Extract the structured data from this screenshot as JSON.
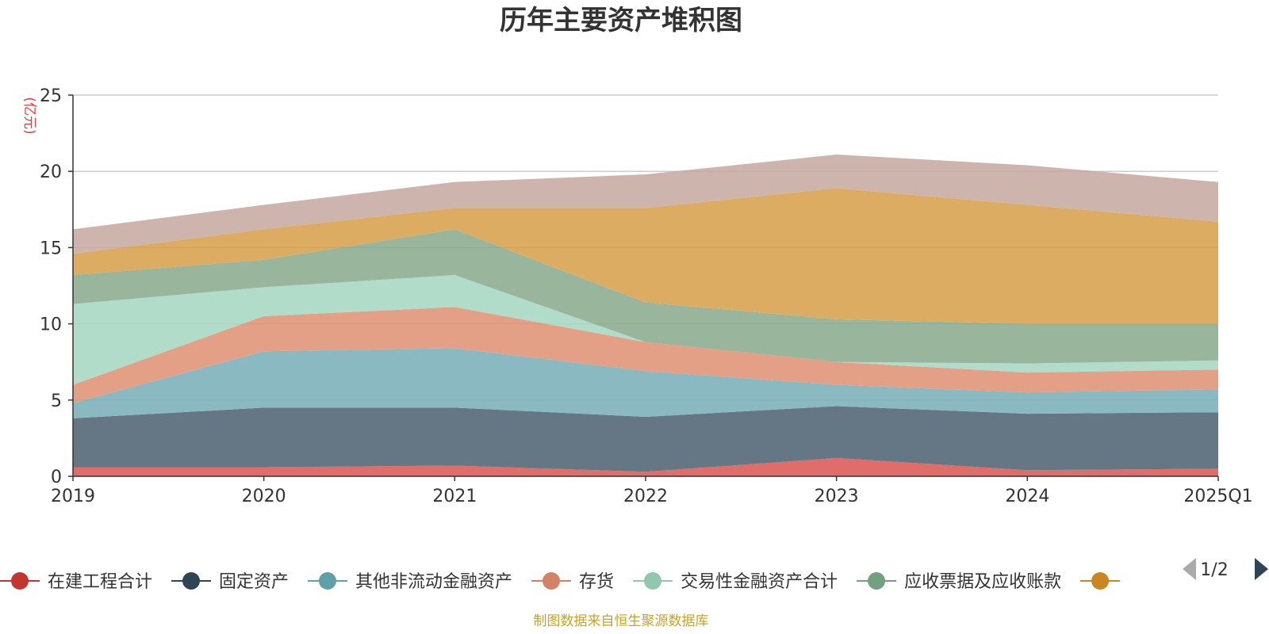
{
  "chart_data": {
    "type": "area",
    "stacked": true,
    "title": "历年主要资产堆积图",
    "unit_label": "(亿元)",
    "x": [
      "2019",
      "2020",
      "2021",
      "2022",
      "2023",
      "2024",
      "2025Q1"
    ],
    "ylim": [
      0,
      25
    ],
    "yticks": [
      0,
      5,
      10,
      15,
      20,
      25
    ],
    "grid": true,
    "legend_position": "bottom",
    "series": [
      {
        "name": "在建工程合计",
        "color": "#d9534f",
        "legend_color": "#c23531",
        "values": [
          0.6,
          0.6,
          0.7,
          0.3,
          1.2,
          0.4,
          0.5
        ]
      },
      {
        "name": "固定资产",
        "color": "#4a5e6e",
        "legend_color": "#2f4554",
        "values": [
          3.2,
          3.9,
          3.8,
          3.6,
          3.4,
          3.7,
          3.7
        ]
      },
      {
        "name": "其他非流动金融资产",
        "color": "#77adb7",
        "legend_color": "#61a0a8",
        "values": [
          1.0,
          3.7,
          3.9,
          3.0,
          1.4,
          1.4,
          1.5
        ]
      },
      {
        "name": "存货",
        "color": "#de8f72",
        "legend_color": "#d48265",
        "values": [
          1.2,
          2.3,
          2.7,
          1.9,
          1.5,
          1.3,
          1.3
        ]
      },
      {
        "name": "交易性金融资产合计",
        "color": "#a3d6bf",
        "legend_color": "#91c7ae",
        "values": [
          5.3,
          1.9,
          2.1,
          0.0,
          0.0,
          0.6,
          0.6
        ]
      },
      {
        "name": "应收票据及应收账款",
        "color": "#87a98c",
        "legend_color": "#749f83",
        "values": [
          1.9,
          1.8,
          3.0,
          2.6,
          2.8,
          2.6,
          2.4
        ]
      },
      {
        "name": "",
        "color": "#d79e48",
        "legend_color": "#ca8622",
        "values": [
          1.4,
          2.0,
          1.4,
          6.2,
          8.6,
          7.8,
          6.7
        ]
      },
      {
        "name": "",
        "color": "#c4a89f",
        "legend_color": "#bda29a",
        "values": [
          1.6,
          1.6,
          1.7,
          2.2,
          2.2,
          2.6,
          2.6
        ]
      }
    ]
  },
  "legend": {
    "visible_count": 7,
    "pager_label": "1/2"
  },
  "footer": "制图数据来自恒生聚源数据库"
}
